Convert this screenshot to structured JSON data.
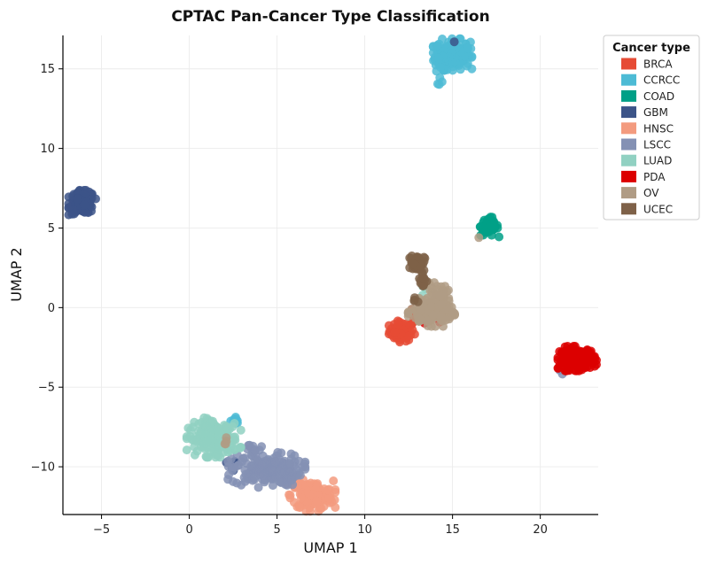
{
  "chart_data": {
    "type": "scatter",
    "title": "CPTAC Pan-Cancer Type Classification",
    "xlabel": "UMAP 1",
    "ylabel": "UMAP 2",
    "xlim": [
      -7.2,
      23.3
    ],
    "ylim": [
      -13.0,
      17.1
    ],
    "xticks": [
      -5,
      0,
      5,
      10,
      15,
      20
    ],
    "yticks": [
      -10,
      -5,
      0,
      5,
      10,
      15
    ],
    "xtick_labels": [
      "−5",
      "0",
      "5",
      "10",
      "15",
      "20"
    ],
    "ytick_labels": [
      "−10",
      "−5",
      "0",
      "5",
      "10",
      "15"
    ],
    "grid": true,
    "legend": {
      "title": "Cancer type",
      "placement": "outside-top-right"
    },
    "series": [
      {
        "name": "BRCA",
        "color": "#e64b35",
        "clusters": [
          {
            "center": [
              12.1,
              -1.5
            ],
            "spread": [
              0.35,
              0.3
            ],
            "n": 80
          },
          {
            "center": [
              12.9,
              -0.6
            ],
            "spread": [
              0.3,
              0.25
            ],
            "n": 15
          }
        ]
      },
      {
        "name": "CCRCC",
        "color": "#4dbbd5",
        "clusters": [
          {
            "center": [
              15.0,
              15.9
            ],
            "spread": [
              0.5,
              0.45
            ],
            "n": 190
          },
          {
            "center": [
              14.3,
              14.9
            ],
            "spread": [
              0.15,
              0.4
            ],
            "n": 14
          },
          {
            "center": [
              2.6,
              -7.1
            ],
            "spread": [
              0.15,
              0.1
            ],
            "n": 10
          }
        ]
      },
      {
        "name": "COAD",
        "color": "#00a087",
        "clusters": [
          {
            "center": [
              17.1,
              5.1
            ],
            "spread": [
              0.25,
              0.3
            ],
            "n": 55
          }
        ]
      },
      {
        "name": "GBM",
        "color": "#3c5488",
        "clusters": [
          {
            "center": [
              -6.1,
              6.6
            ],
            "spread": [
              0.35,
              0.35
            ],
            "n": 150
          },
          {
            "center": [
              15.1,
              16.7
            ],
            "spread": [
              0.05,
              0.05
            ],
            "n": 1
          },
          {
            "center": [
              2.5,
              -9.9
            ],
            "spread": [
              0.3,
              0.15
            ],
            "n": 6
          }
        ]
      },
      {
        "name": "HNSC",
        "color": "#f39b7f",
        "clusters": [
          {
            "center": [
              7.0,
              -11.8
            ],
            "spread": [
              0.6,
              0.45
            ],
            "n": 150
          },
          {
            "center": [
              6.1,
              -11.1
            ],
            "spread": [
              0.25,
              0.2
            ],
            "n": 14
          }
        ]
      },
      {
        "name": "LSCC",
        "color": "#8491b4",
        "clusters": [
          {
            "center": [
              4.4,
              -10.2
            ],
            "spread": [
              1.0,
              0.5
            ],
            "n": 170
          },
          {
            "center": [
              3.7,
              -8.9
            ],
            "spread": [
              0.3,
              0.25
            ],
            "n": 12
          },
          {
            "center": [
              21.2,
              -4.1
            ],
            "spread": [
              0.1,
              0.1
            ],
            "n": 2
          }
        ]
      },
      {
        "name": "LUAD",
        "color": "#91d1c2",
        "clusters": [
          {
            "center": [
              1.4,
              -8.3
            ],
            "spread": [
              0.7,
              0.5
            ],
            "n": 170
          },
          {
            "center": [
              1.2,
              -7.2
            ],
            "spread": [
              0.3,
              0.2
            ],
            "n": 12
          },
          {
            "center": [
              13.4,
              1.1
            ],
            "spread": [
              0.2,
              0.2
            ],
            "n": 3
          }
        ]
      },
      {
        "name": "PDA",
        "color": "#dc0000",
        "clusters": [
          {
            "center": [
              22.1,
              -3.2
            ],
            "spread": [
              0.5,
              0.35
            ],
            "n": 150
          },
          {
            "center": [
              13.6,
              -0.8
            ],
            "spread": [
              0.3,
              0.15
            ],
            "n": 8
          }
        ]
      },
      {
        "name": "OV",
        "color": "#b09c85",
        "clusters": [
          {
            "center": [
              13.8,
              -0.3
            ],
            "spread": [
              0.6,
              0.4
            ],
            "n": 160
          },
          {
            "center": [
              14.1,
              0.8
            ],
            "spread": [
              0.3,
              0.35
            ],
            "n": 30
          },
          {
            "center": [
              16.5,
              4.4
            ],
            "spread": [
              0.05,
              0.05
            ],
            "n": 1
          },
          {
            "center": [
              2.1,
              -8.2
            ],
            "spread": [
              0.2,
              0.3
            ],
            "n": 4
          }
        ]
      },
      {
        "name": "UCEC",
        "color": "#7e6148",
        "clusters": [
          {
            "center": [
              13.0,
              2.8
            ],
            "spread": [
              0.2,
              0.25
            ],
            "n": 45
          },
          {
            "center": [
              13.3,
              1.8
            ],
            "spread": [
              0.15,
              0.3
            ],
            "n": 15
          },
          {
            "center": [
              12.9,
              0.4
            ],
            "spread": [
              0.1,
              0.15
            ],
            "n": 4
          }
        ]
      }
    ]
  }
}
